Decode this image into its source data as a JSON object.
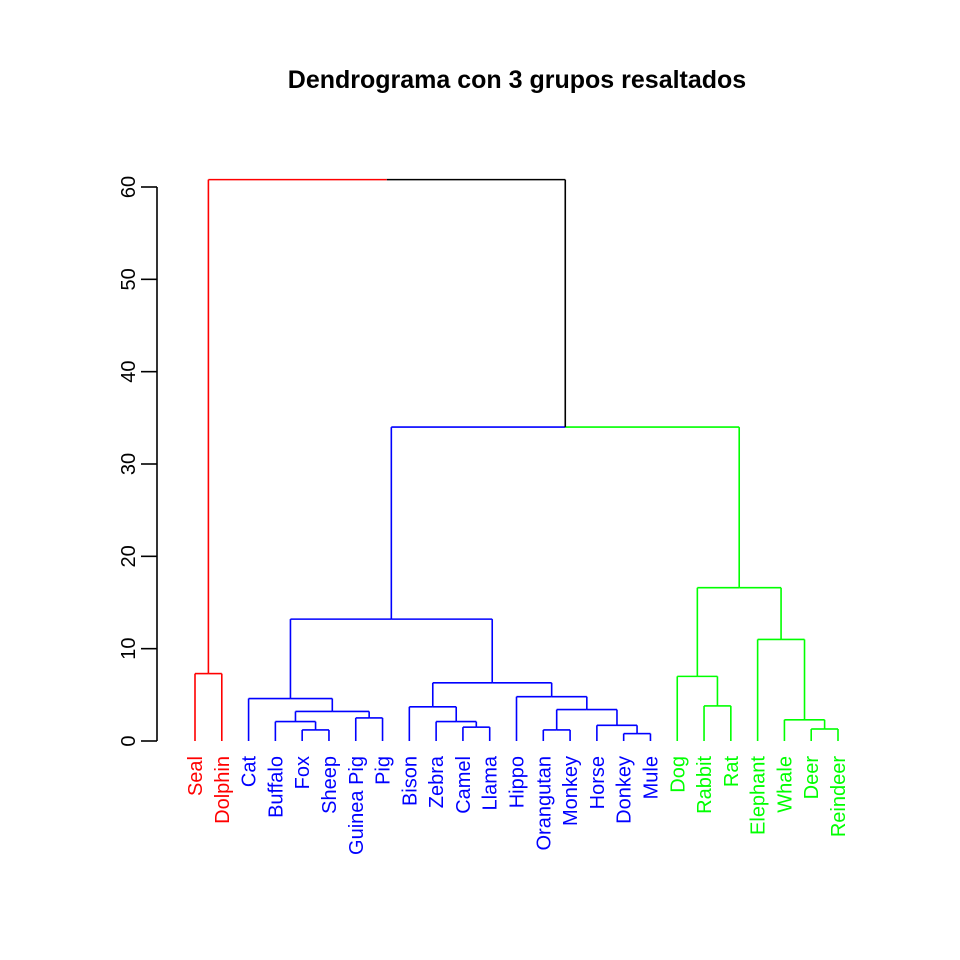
{
  "chart_data": {
    "type": "dendrogram",
    "title": "Dendrograma con 3 grupos resaltados",
    "xlabel": "",
    "ylabel": "",
    "ylim": [
      0,
      60
    ],
    "yticks": [
      0,
      10,
      20,
      30,
      40,
      50,
      60
    ],
    "grid": false,
    "leaves": [
      {
        "label": "Seal",
        "group": 1
      },
      {
        "label": "Dolphin",
        "group": 1
      },
      {
        "label": "Cat",
        "group": 2
      },
      {
        "label": "Buffalo",
        "group": 2
      },
      {
        "label": "Fox",
        "group": 2
      },
      {
        "label": "Sheep",
        "group": 2
      },
      {
        "label": "Guinea Pig",
        "group": 2
      },
      {
        "label": "Pig",
        "group": 2
      },
      {
        "label": "Bison",
        "group": 2
      },
      {
        "label": "Zebra",
        "group": 2
      },
      {
        "label": "Camel",
        "group": 2
      },
      {
        "label": "Llama",
        "group": 2
      },
      {
        "label": "Hippo",
        "group": 2
      },
      {
        "label": "Orangutan",
        "group": 2
      },
      {
        "label": "Monkey",
        "group": 2
      },
      {
        "label": "Horse",
        "group": 2
      },
      {
        "label": "Donkey",
        "group": 2
      },
      {
        "label": "Mule",
        "group": 2
      },
      {
        "label": "Dog",
        "group": 3
      },
      {
        "label": "Rabbit",
        "group": 3
      },
      {
        "label": "Rat",
        "group": 3
      },
      {
        "label": "Elephant",
        "group": 3
      },
      {
        "label": "Whale",
        "group": 3
      },
      {
        "label": "Deer",
        "group": 3
      },
      {
        "label": "Reindeer",
        "group": 3
      }
    ],
    "group_colors": {
      "0": "#000000",
      "1": "#ff0000",
      "2": "#0000ff",
      "3": "#00ff00"
    },
    "merges": [
      {
        "id": "m_seal_dolphin",
        "left": "Seal",
        "right": "Dolphin",
        "height": 7.3,
        "group": 1
      },
      {
        "id": "m_fox_sheep",
        "left": "Fox",
        "right": "Sheep",
        "height": 1.2,
        "group": 2
      },
      {
        "id": "m_buffalo",
        "left": "Buffalo",
        "right": "m_fox_sheep",
        "height": 2.1,
        "group": 2
      },
      {
        "id": "m_gpig_pig",
        "left": "Guinea Pig",
        "right": "Pig",
        "height": 2.5,
        "group": 2
      },
      {
        "id": "m_bfsgp",
        "left": "m_buffalo",
        "right": "m_gpig_pig",
        "height": 3.2,
        "group": 2
      },
      {
        "id": "m_cat",
        "left": "Cat",
        "right": "m_bfsgp",
        "height": 4.6,
        "group": 2
      },
      {
        "id": "m_camel_llama",
        "left": "Camel",
        "right": "Llama",
        "height": 1.5,
        "group": 2
      },
      {
        "id": "m_zebra",
        "left": "Zebra",
        "right": "m_camel_llama",
        "height": 2.1,
        "group": 2
      },
      {
        "id": "m_bison",
        "left": "Bison",
        "right": "m_zebra",
        "height": 3.7,
        "group": 2
      },
      {
        "id": "m_orang_monkey",
        "left": "Orangutan",
        "right": "Monkey",
        "height": 1.2,
        "group": 2
      },
      {
        "id": "m_donkey_mule",
        "left": "Donkey",
        "right": "Mule",
        "height": 0.8,
        "group": 2
      },
      {
        "id": "m_horse",
        "left": "Horse",
        "right": "m_donkey_mule",
        "height": 1.7,
        "group": 2
      },
      {
        "id": "m_primates_equines",
        "left": "m_orang_monkey",
        "right": "m_horse",
        "height": 3.4,
        "group": 2
      },
      {
        "id": "m_hippo",
        "left": "Hippo",
        "right": "m_primates_equines",
        "height": 4.8,
        "group": 2
      },
      {
        "id": "m_mid",
        "left": "m_bison",
        "right": "m_hippo",
        "height": 6.3,
        "group": 2
      },
      {
        "id": "m_blue",
        "left": "m_cat",
        "right": "m_mid",
        "height": 13.2,
        "group": 2
      },
      {
        "id": "m_rabbit_rat",
        "left": "Rabbit",
        "right": "Rat",
        "height": 3.8,
        "group": 3
      },
      {
        "id": "m_dog",
        "left": "Dog",
        "right": "m_rabbit_rat",
        "height": 7.0,
        "group": 3
      },
      {
        "id": "m_deer_reindeer",
        "left": "Deer",
        "right": "Reindeer",
        "height": 1.3,
        "group": 3
      },
      {
        "id": "m_whale",
        "left": "Whale",
        "right": "m_deer_reindeer",
        "height": 2.3,
        "group": 3
      },
      {
        "id": "m_elephant",
        "left": "Elephant",
        "right": "m_whale",
        "height": 11.0,
        "group": 3
      },
      {
        "id": "m_green",
        "left": "m_dog",
        "right": "m_elephant",
        "height": 16.6,
        "group": 3
      },
      {
        "id": "m_blue_green",
        "left": "m_blue",
        "right": "m_green",
        "height": 34.0,
        "group": 0
      },
      {
        "id": "m_root",
        "left": "m_seal_dolphin",
        "right": "m_blue_green",
        "height": 60.8,
        "group": 0
      }
    ]
  }
}
